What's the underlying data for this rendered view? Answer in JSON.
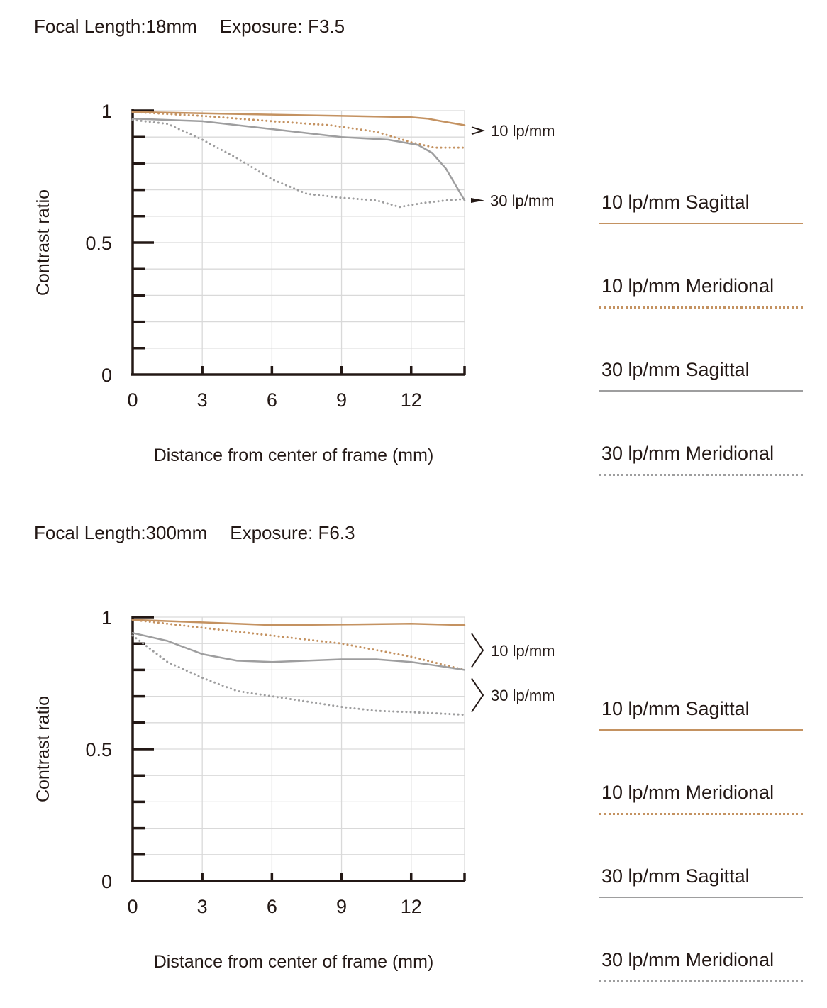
{
  "colors": {
    "s10": "#c49261",
    "m10": "#c49261",
    "s30": "#9e9e9f",
    "m30": "#9e9e9f",
    "axis": "#231815",
    "grid": "#d9d9d9"
  },
  "legend": [
    {
      "key": "s10",
      "label": "10 lp/mm Sagittal",
      "style": "solid"
    },
    {
      "key": "m10",
      "label": "10 lp/mm Meridional",
      "style": "dotted"
    },
    {
      "key": "s30",
      "label": "30 lp/mm Sagittal",
      "style": "solid"
    },
    {
      "key": "m30",
      "label": "30 lp/mm Meridional",
      "style": "dotted"
    }
  ],
  "chart_data": [
    {
      "type": "line",
      "header": {
        "focal": "Focal Length:18mm",
        "exposure": "Exposure: F3.5"
      },
      "xlabel": "Distance from center of frame (mm)",
      "ylabel": "Contrast ratio",
      "xlim": [
        0,
        14.3
      ],
      "ylim": [
        0,
        1
      ],
      "xticks": [
        0,
        3,
        6,
        9,
        12
      ],
      "yticks": [
        0,
        0.5,
        1
      ],
      "grid": true,
      "annotations": [
        {
          "text": "10 lp/mm",
          "bracket": "angle",
          "y_range": [
            0.9,
            0.97
          ]
        },
        {
          "text": "30 lp/mm",
          "bracket": "arrow",
          "y_at": 0.66
        }
      ],
      "series": [
        {
          "name": "10 lp/mm Sagittal",
          "key": "s10",
          "style": "solid",
          "x": [
            0,
            3,
            6,
            9,
            12,
            12.7,
            13.3,
            14.3
          ],
          "y": [
            0.995,
            0.99,
            0.985,
            0.98,
            0.975,
            0.97,
            0.96,
            0.945
          ]
        },
        {
          "name": "10 lp/mm Meridional",
          "key": "m10",
          "style": "dotted",
          "x": [
            0,
            3,
            6,
            8.5,
            10.5,
            12,
            13,
            14.3
          ],
          "y": [
            0.995,
            0.98,
            0.96,
            0.945,
            0.92,
            0.88,
            0.86,
            0.86
          ]
        },
        {
          "name": "30 lp/mm Sagittal",
          "key": "s30",
          "style": "solid",
          "x": [
            0,
            3,
            6,
            9,
            11,
            12.3,
            12.9,
            13.5,
            14.3
          ],
          "y": [
            0.97,
            0.96,
            0.93,
            0.9,
            0.89,
            0.87,
            0.84,
            0.78,
            0.66
          ]
        },
        {
          "name": "30 lp/mm Meridional",
          "key": "m30",
          "style": "dotted",
          "x": [
            0,
            1.5,
            3,
            4.5,
            6,
            7.5,
            9,
            10.5,
            11.5,
            12.5,
            13.5,
            14.3
          ],
          "y": [
            0.965,
            0.95,
            0.89,
            0.82,
            0.74,
            0.685,
            0.67,
            0.66,
            0.635,
            0.65,
            0.66,
            0.665
          ]
        }
      ]
    },
    {
      "type": "line",
      "header": {
        "focal": "Focal Length:300mm",
        "exposure": "Exposure: F6.3"
      },
      "xlabel": "Distance from center of frame (mm)",
      "ylabel": "Contrast ratio",
      "xlim": [
        0,
        14.3
      ],
      "ylim": [
        0,
        1
      ],
      "xticks": [
        0,
        3,
        6,
        9,
        12
      ],
      "yticks": [
        0,
        0.5,
        1
      ],
      "grid": true,
      "annotations": [
        {
          "text": "10 lp/mm",
          "bracket": "angle",
          "y_range": [
            0.8,
            0.97
          ]
        },
        {
          "text": "30 lp/mm",
          "bracket": "angle",
          "y_range": [
            0.63,
            0.8
          ]
        }
      ],
      "series": [
        {
          "name": "10 lp/mm Sagittal",
          "key": "s10",
          "style": "solid",
          "x": [
            0,
            3,
            6,
            9,
            12,
            14.3
          ],
          "y": [
            0.99,
            0.98,
            0.97,
            0.972,
            0.975,
            0.97
          ]
        },
        {
          "name": "10 lp/mm Meridional",
          "key": "m10",
          "style": "dotted",
          "x": [
            0,
            3,
            6,
            9,
            12,
            14.3
          ],
          "y": [
            0.99,
            0.96,
            0.93,
            0.9,
            0.85,
            0.8
          ]
        },
        {
          "name": "30 lp/mm Sagittal",
          "key": "s30",
          "style": "solid",
          "x": [
            0,
            1.5,
            3,
            4.5,
            6,
            7.5,
            9,
            10.5,
            12,
            13.2,
            14.3
          ],
          "y": [
            0.94,
            0.91,
            0.86,
            0.835,
            0.83,
            0.835,
            0.84,
            0.84,
            0.83,
            0.815,
            0.8
          ]
        },
        {
          "name": "30 lp/mm Meridional",
          "key": "m30",
          "style": "dotted",
          "x": [
            0,
            1.5,
            3,
            4.5,
            6,
            7.5,
            9,
            10.5,
            12,
            14.3
          ],
          "y": [
            0.93,
            0.83,
            0.77,
            0.72,
            0.7,
            0.68,
            0.66,
            0.645,
            0.64,
            0.63
          ]
        }
      ]
    }
  ]
}
